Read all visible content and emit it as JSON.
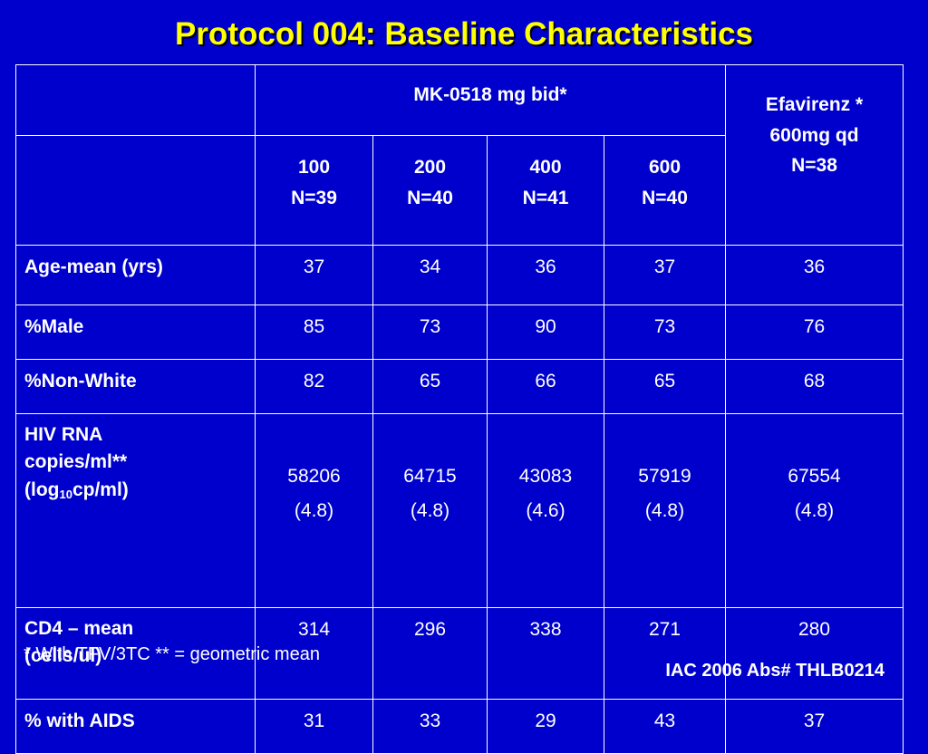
{
  "title": "Protocol 004:  Baseline Characteristics",
  "header": {
    "mk_group": "MK-0518 mg bid*",
    "efavirenz": [
      "Efavirenz *",
      "600mg qd",
      "N=38"
    ],
    "doses": [
      {
        "dose": "100",
        "n": "N=39"
      },
      {
        "dose": "200",
        "n": "N=40"
      },
      {
        "dose": "400",
        "n": "N=41"
      },
      {
        "dose": "600",
        "n": "N=40"
      }
    ]
  },
  "rows": {
    "age": {
      "label": "Age-mean (yrs)",
      "values": [
        "37",
        "34",
        "36",
        "37",
        "36"
      ]
    },
    "male": {
      "label": "%Male",
      "values": [
        "85",
        "73",
        "90",
        "73",
        "76"
      ]
    },
    "nonwhite": {
      "label": "%Non-White",
      "values": [
        "82",
        "65",
        "66",
        "65",
        "68"
      ]
    },
    "hiv": {
      "label_line1": "HIV RNA",
      "label_line2": "copies/ml**",
      "label_line3_pre": "(log",
      "label_line3_sub": "10",
      "label_line3_post": "cp/ml)",
      "values": [
        "58206",
        "64715",
        "43083",
        "57919",
        "67554"
      ],
      "logs": [
        "(4.8)",
        "(4.8)",
        "(4.6)",
        "(4.8)",
        "(4.8)"
      ]
    },
    "cd4": {
      "label_line1": "CD4 – mean",
      "label_line2": "(cells/ul)",
      "values": [
        "314",
        "296",
        "338",
        "271",
        "280"
      ]
    },
    "aids": {
      "label": "% with AIDS",
      "values": [
        "31",
        "33",
        "29",
        "43",
        "37"
      ]
    }
  },
  "footnote": "* With TFV/3TC   ** = geometric mean",
  "source": "IAC 2006 Abs# THLB0214",
  "colors": {
    "background": "#0000cc",
    "title": "#ffff00",
    "text": "#ffffff"
  }
}
